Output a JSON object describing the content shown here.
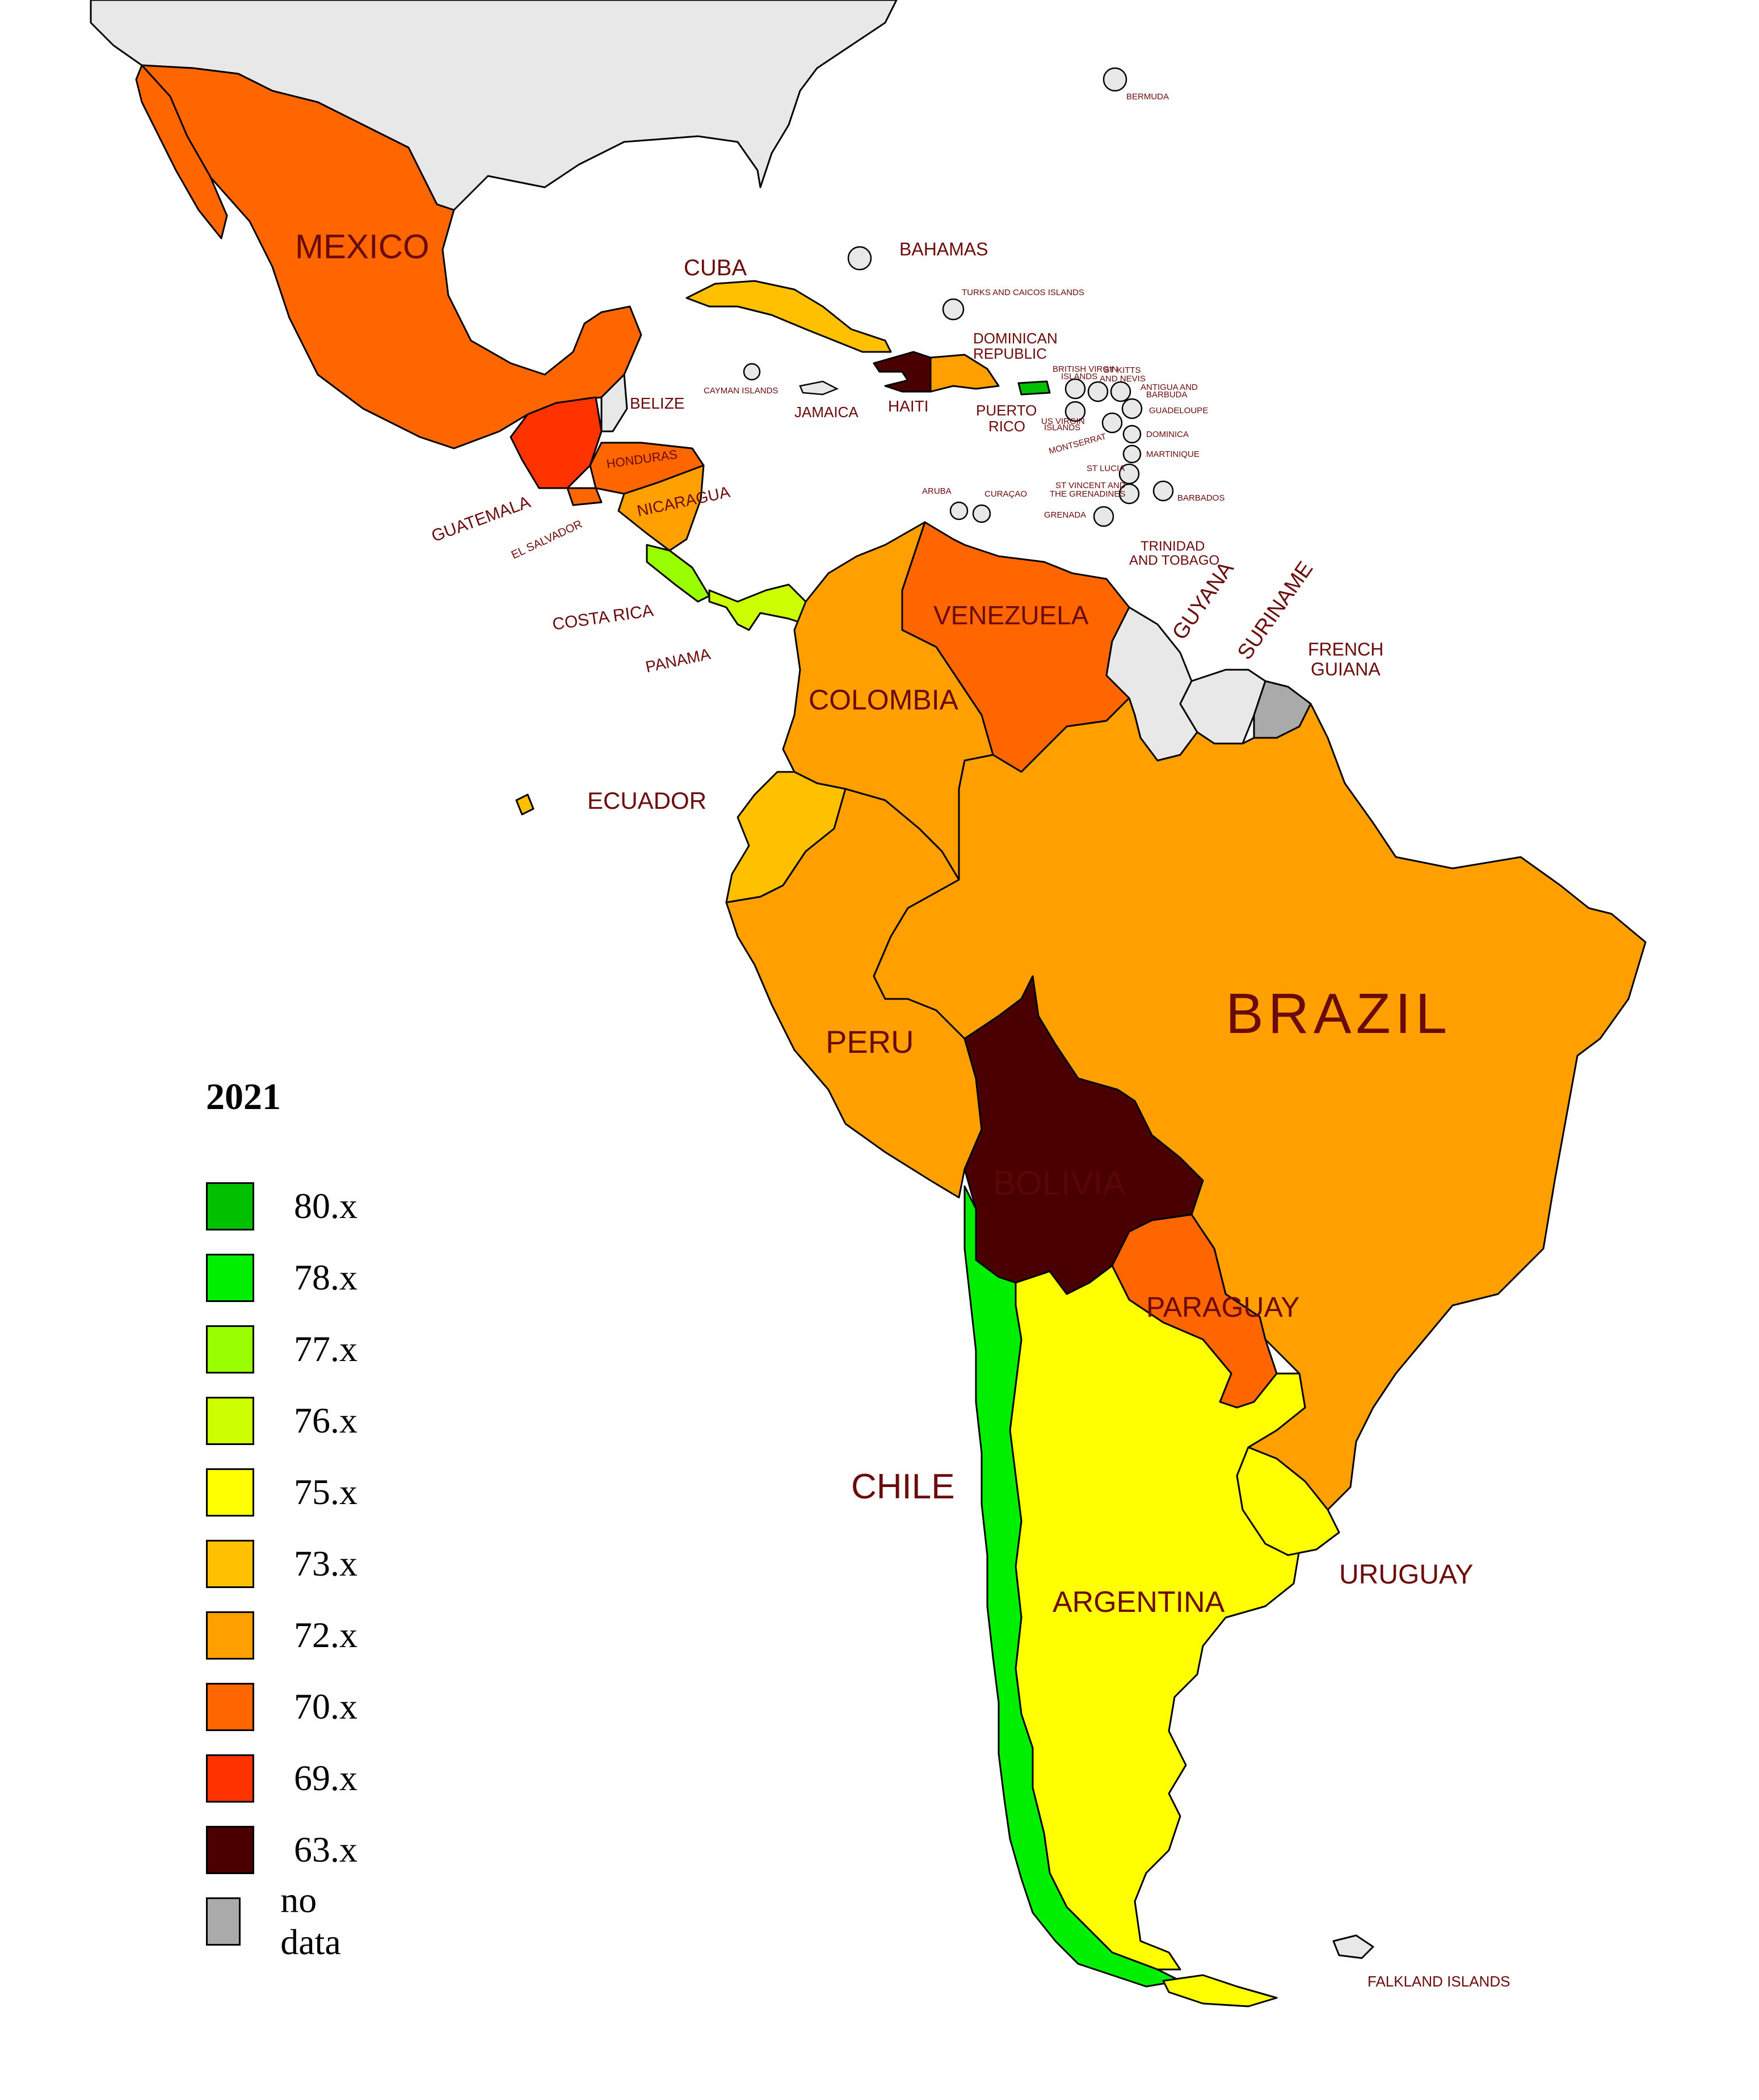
{
  "legend": {
    "title": "2021",
    "items": [
      {
        "label": "80.x",
        "color": "#00c000"
      },
      {
        "label": "78.x",
        "color": "#00ee00"
      },
      {
        "label": "77.x",
        "color": "#99ff00"
      },
      {
        "label": "76.x",
        "color": "#ccff00"
      },
      {
        "label": "75.x",
        "color": "#ffff00"
      },
      {
        "label": "73.x",
        "color": "#ffc000"
      },
      {
        "label": "72.x",
        "color": "#ffa000"
      },
      {
        "label": "70.x",
        "color": "#ff6600"
      },
      {
        "label": "69.x",
        "color": "#ff3300"
      },
      {
        "label": "63.x",
        "color": "#4a0000"
      },
      {
        "label": "no data",
        "color": "#aaaaaa"
      }
    ]
  },
  "countries": {
    "mexico": "MEXICO",
    "cuba": "CUBA",
    "bahamas": "BAHAMAS",
    "bermuda": "BERMUDA",
    "turks_caicos": "TURKS AND CAICOS ISLANDS",
    "dominican_republic_1": "DOMINICAN",
    "dominican_republic_2": "REPUBLIC",
    "belize": "BELIZE",
    "cayman": "CAYMAN ISLANDS",
    "jamaica": "JAMAICA",
    "haiti": "HAITI",
    "puerto_rico_1": "PUERTO",
    "puerto_rico_2": "RICO",
    "bvi_1": "BRITISH VIRGIN",
    "bvi_2": "ISLANDS",
    "st_kitts_1": "ST KITTS",
    "st_kitts_2": "AND NEVIS",
    "antigua_1": "ANTIGUA AND",
    "antigua_2": "BARBUDA",
    "guadeloupe": "GUADELOUPE",
    "usvi_1": "US VIRGIN",
    "usvi_2": "ISLANDS",
    "montserrat": "MONTSERRAT",
    "dominica": "DOMINICA",
    "martinique": "MARTINIQUE",
    "st_lucia": "ST LUCIA",
    "st_vincent_1": "ST VINCENT AND",
    "st_vincent_2": "THE GRENADINES",
    "barbados": "BARBADOS",
    "grenada": "GRENADA",
    "aruba": "ARUBA",
    "curacao": "CURAÇAO",
    "trinidad_1": "TRINIDAD",
    "trinidad_2": "AND TOBAGO",
    "guatemala": "GUATEMALA",
    "honduras": "HONDURAS",
    "el_salvador": "EL SALVADOR",
    "nicaragua": "NICARAGUA",
    "costa_rica": "COSTA RICA",
    "panama": "PANAMA",
    "venezuela": "VENEZUELA",
    "guyana": "GUYANA",
    "suriname": "SURINAME",
    "french_guiana_1": "FRENCH",
    "french_guiana_2": "GUIANA",
    "colombia": "COLOMBIA",
    "ecuador": "ECUADOR",
    "brazil": "BRAZIL",
    "peru": "PERU",
    "bolivia": "BOLIVIA",
    "paraguay": "PARAGUAY",
    "chile": "CHILE",
    "argentina": "ARGENTINA",
    "uruguay": "URUGUAY",
    "falklands": "FALKLAND ISLANDS"
  },
  "colors": {
    "no_data_land": "#e8e8e8",
    "label": "#6b0a0a"
  }
}
